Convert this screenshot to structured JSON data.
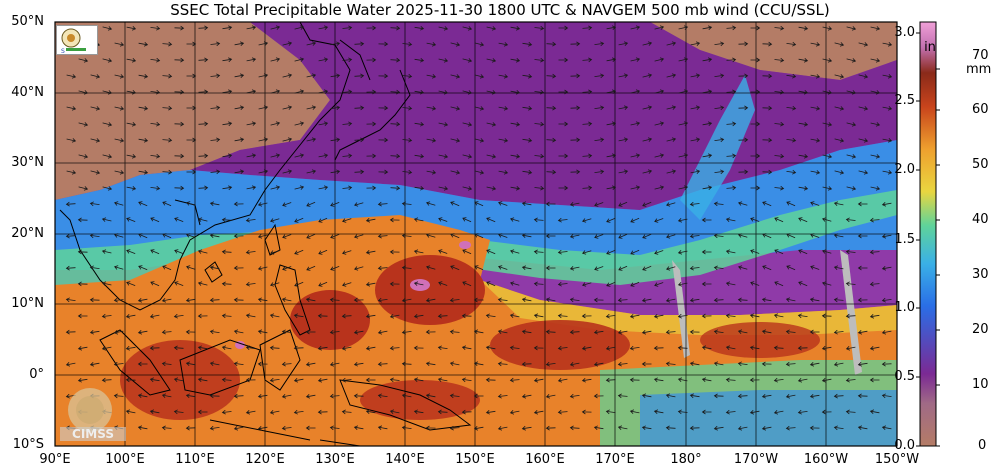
{
  "title": "SSEC Total Precipitable Water  2025-11-30 1800 UTC & NAVGEM 500 mb wind (CCU/SSL)",
  "lat_labels": [
    "50°N",
    "40°N",
    "30°N",
    "20°N",
    "10°N",
    "0°",
    "10°S"
  ],
  "lon_labels": [
    "90°E",
    "100°E",
    "110°E",
    "120°E",
    "130°E",
    "140°E",
    "150°E",
    "160°E",
    "170°E",
    "180°",
    "170°W",
    "160°W",
    "150°W"
  ],
  "colorbar": {
    "unit_in": "in",
    "unit_mm": "mm",
    "in_ticks": [
      "3.0",
      "2.5",
      "2.0",
      "1.5",
      "1.0",
      "0.5",
      "0.0"
    ],
    "mm_ticks": [
      "70",
      "60",
      "50",
      "40",
      "30",
      "20",
      "10",
      "0"
    ]
  },
  "logos": {
    "watermark": "CIMSS"
  },
  "colors": {
    "dry": "#b47c66",
    "very_dry_purple": "#7b2a94",
    "purple": "#8f3aa8",
    "blue": "#3a8ee6",
    "green": "#5fd39a",
    "yellow": "#e9c43c",
    "orange": "#e8822a",
    "red": "#b8331c",
    "land_line": "#000000"
  }
}
